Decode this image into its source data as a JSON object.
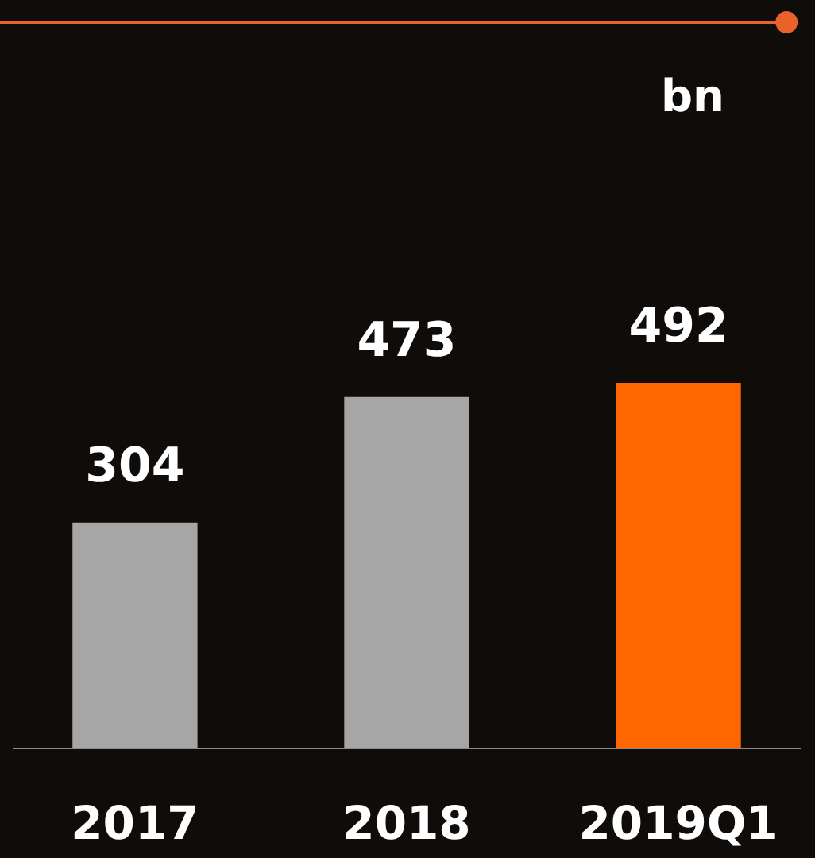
{
  "chart_data": {
    "type": "bar",
    "annotations": [
      "bn"
    ],
    "categories": [
      "2017",
      "2018",
      "2019Q1"
    ],
    "values": [
      304,
      473,
      492
    ],
    "colors": [
      "#a6a6a6",
      "#a6a6a6",
      "#ff6600"
    ],
    "data_labels": true
  }
}
